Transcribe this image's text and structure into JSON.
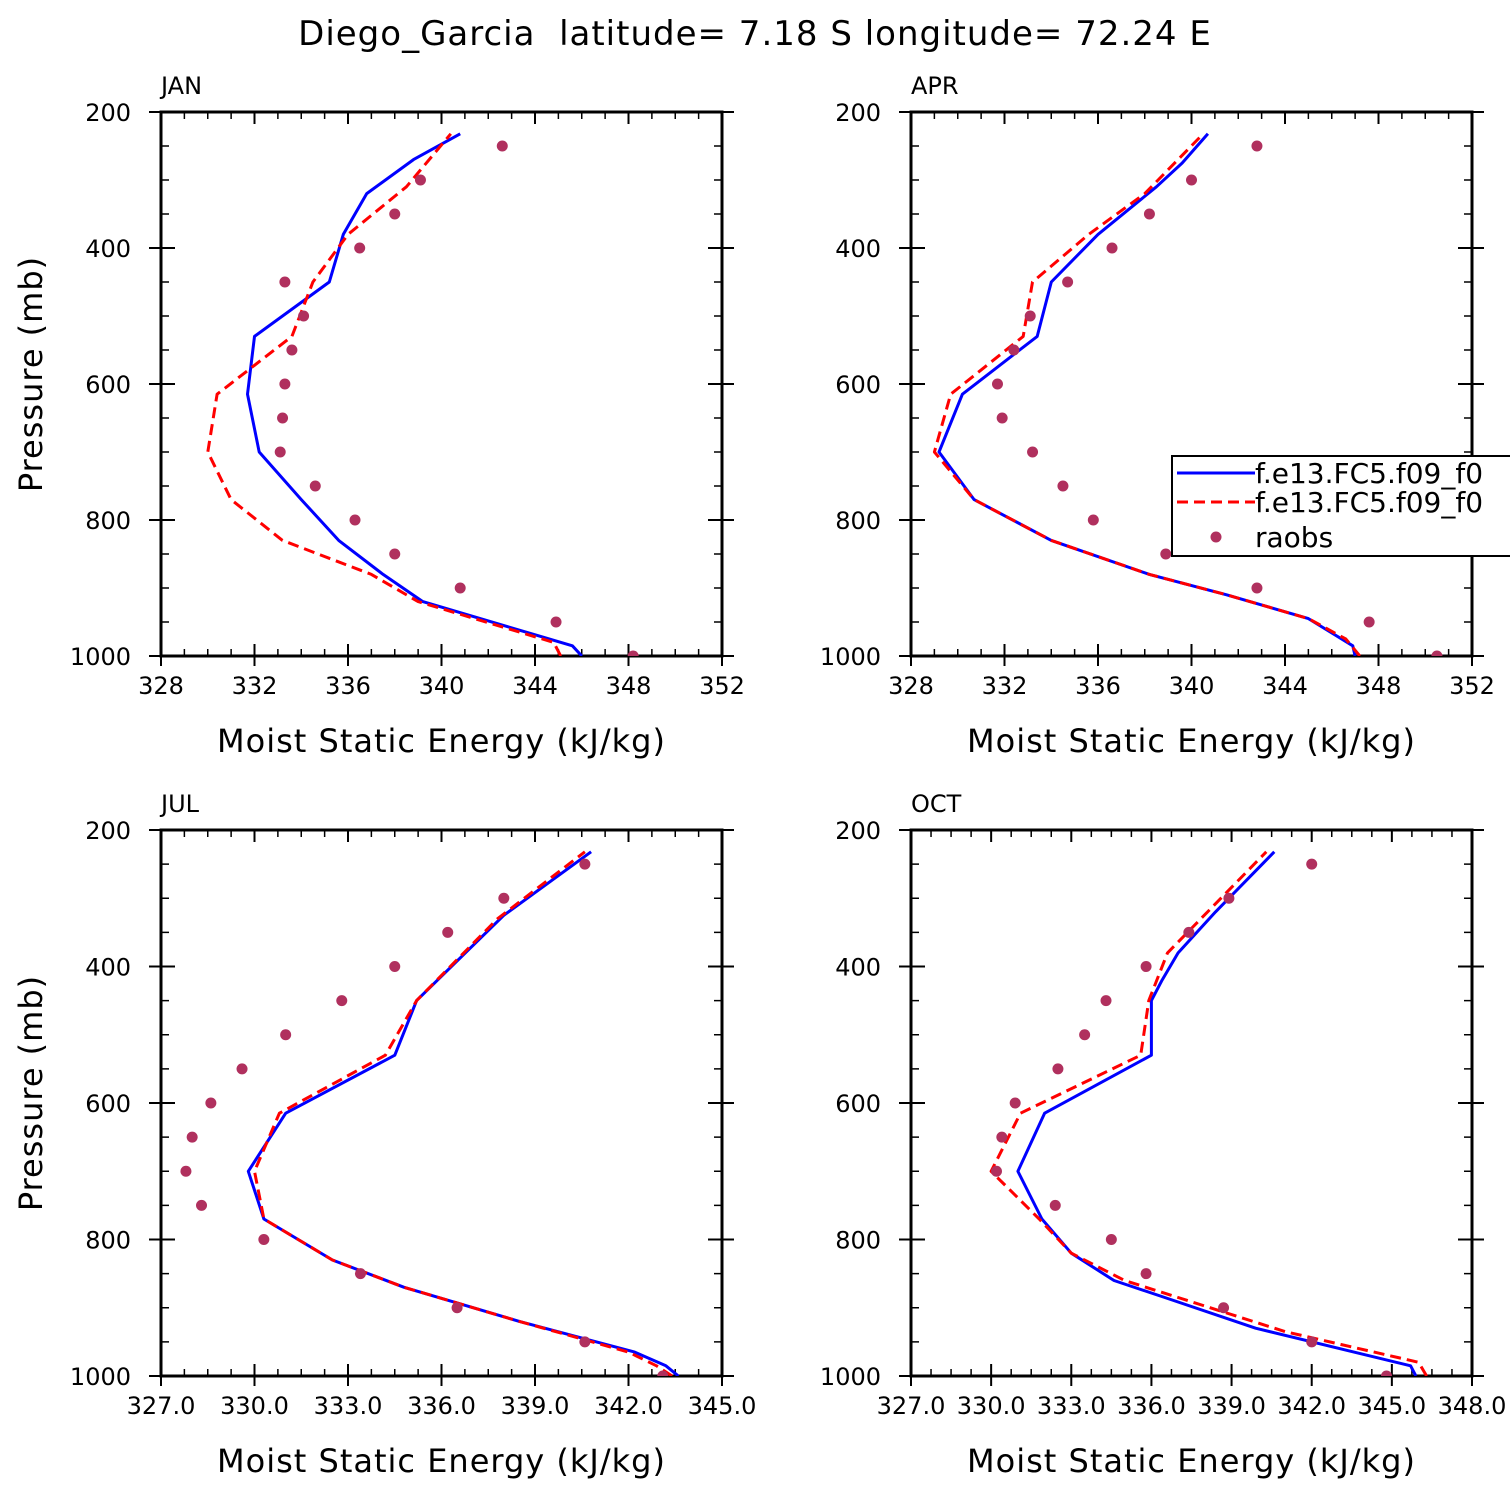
{
  "figure": {
    "title": "Diego_Garcia  latitude= 7.18 S longitude= 72.24 E"
  },
  "colors": {
    "model1": "#0000ff",
    "model2": "#ff0000",
    "raobs": "#b0305e",
    "axis": "#000000"
  },
  "chart_data": [
    {
      "type": "line",
      "panel": "JAN",
      "title": "JAN",
      "xlabel": "Moist Static Energy (kJ/kg)",
      "ylabel": "Pressure (mb)",
      "xlim": [
        328,
        352
      ],
      "ylim": [
        200,
        1000
      ],
      "xticks": [
        328,
        332,
        336,
        340,
        344,
        348,
        352
      ],
      "xtick_labels": [
        "328",
        "332",
        "336",
        "340",
        "344",
        "348",
        "352"
      ],
      "yticks": [
        200,
        400,
        600,
        800,
        1000
      ],
      "ytick_labels": [
        "200",
        "400",
        "600",
        "800",
        "1000"
      ],
      "y_inverted": true,
      "series": [
        {
          "name": "f.e13.FC5.f09_f0",
          "style": "solid",
          "color": "#0000ff",
          "x": [
            346.0,
            345.6,
            339.2,
            337.5,
            335.6,
            334.0,
            332.2,
            331.7,
            332.0,
            335.2,
            335.8,
            336.8,
            338.8,
            340.8
          ],
          "y": [
            1000,
            985,
            920,
            880,
            830,
            770,
            700,
            615,
            530,
            450,
            380,
            320,
            270,
            232
          ]
        },
        {
          "name": "f.e13.FC5.f09_f0",
          "style": "dashed",
          "color": "#ff0000",
          "x": [
            345.1,
            344.8,
            339.0,
            337.0,
            333.2,
            331.0,
            330.0,
            330.4,
            333.6,
            334.5,
            336.0,
            338.5,
            340.4
          ],
          "y": [
            1000,
            980,
            920,
            880,
            830,
            770,
            700,
            615,
            530,
            450,
            380,
            310,
            232
          ]
        },
        {
          "name": "raobs",
          "style": "markers",
          "color": "#b0305e",
          "x": [
            348.2,
            344.9,
            340.8,
            338.0,
            336.3,
            334.6,
            333.1,
            333.2,
            333.3,
            333.6,
            334.1,
            333.3,
            336.5,
            338.0,
            339.1,
            342.6
          ],
          "y": [
            1000,
            950,
            900,
            850,
            800,
            750,
            700,
            650,
            600,
            550,
            500,
            450,
            400,
            350,
            300,
            250
          ]
        }
      ]
    },
    {
      "type": "line",
      "panel": "APR",
      "title": "APR",
      "xlabel": "Moist Static Energy (kJ/kg)",
      "ylabel": "",
      "xlim": [
        328,
        352
      ],
      "ylim": [
        200,
        1000
      ],
      "xticks": [
        328,
        332,
        336,
        340,
        344,
        348,
        352
      ],
      "xtick_labels": [
        "328",
        "332",
        "336",
        "340",
        "344",
        "348",
        "352"
      ],
      "yticks": [
        200,
        400,
        600,
        800,
        1000
      ],
      "ytick_labels": [
        "200",
        "400",
        "600",
        "800",
        "1000"
      ],
      "y_inverted": true,
      "series": [
        {
          "name": "f.e13.FC5.f09_f0",
          "style": "solid",
          "color": "#0000ff",
          "x": [
            347.0,
            346.9,
            345.0,
            341.5,
            338.2,
            334.0,
            330.7,
            329.2,
            330.2,
            333.4,
            334.0,
            336.0,
            338.5,
            339.6,
            340.7
          ],
          "y": [
            1000,
            985,
            945,
            910,
            880,
            830,
            770,
            700,
            615,
            530,
            450,
            380,
            310,
            275,
            232
          ]
        },
        {
          "name": "f.e13.FC5.f09_f0",
          "style": "dashed",
          "color": "#ff0000",
          "x": [
            347.2,
            346.6,
            345.0,
            341.5,
            338.2,
            334.0,
            330.7,
            329.0,
            329.7,
            332.8,
            333.2,
            335.6,
            338.0,
            340.5
          ],
          "y": [
            1000,
            975,
            945,
            910,
            880,
            830,
            770,
            700,
            615,
            530,
            450,
            380,
            320,
            232
          ]
        },
        {
          "name": "raobs",
          "style": "markers",
          "color": "#b0305e",
          "x": [
            350.5,
            347.6,
            342.8,
            338.9,
            335.8,
            334.5,
            333.2,
            331.9,
            331.7,
            332.4,
            333.1,
            334.7,
            336.6,
            338.2,
            340.0,
            342.8
          ],
          "y": [
            1000,
            950,
            900,
            850,
            800,
            750,
            700,
            650,
            600,
            550,
            500,
            450,
            400,
            350,
            300,
            250
          ]
        }
      ]
    },
    {
      "type": "line",
      "panel": "JUL",
      "title": "JUL",
      "xlabel": "Moist Static Energy (kJ/kg)",
      "ylabel": "Pressure (mb)",
      "xlim": [
        327.0,
        345.0
      ],
      "ylim": [
        200,
        1000
      ],
      "xticks": [
        327.0,
        330.0,
        333.0,
        336.0,
        339.0,
        342.0,
        345.0
      ],
      "xtick_labels": [
        "327.0",
        "330.0",
        "333.0",
        "336.0",
        "339.0",
        "342.0",
        "345.0"
      ],
      "yticks": [
        200,
        400,
        600,
        800,
        1000
      ],
      "ytick_labels": [
        "200",
        "400",
        "600",
        "800",
        "1000"
      ],
      "y_inverted": true,
      "series": [
        {
          "name": "f.e13.FC5.f09_f0",
          "style": "solid",
          "color": "#0000ff",
          "x": [
            343.6,
            343.2,
            342.2,
            338.5,
            334.8,
            332.5,
            330.3,
            329.8,
            331.0,
            334.5,
            335.2,
            338.0,
            340.8
          ],
          "y": [
            1000,
            985,
            965,
            920,
            870,
            830,
            770,
            700,
            615,
            530,
            450,
            325,
            232
          ]
        },
        {
          "name": "f.e13.FC5.f09_f0",
          "style": "dashed",
          "color": "#ff0000",
          "x": [
            343.4,
            342.9,
            342.0,
            338.5,
            334.8,
            332.5,
            330.3,
            330.0,
            330.8,
            334.2,
            335.2,
            337.8,
            340.6
          ],
          "y": [
            1000,
            985,
            965,
            920,
            870,
            830,
            770,
            700,
            615,
            530,
            450,
            330,
            232
          ]
        },
        {
          "name": "raobs",
          "style": "markers",
          "color": "#b0305e",
          "x": [
            343.1,
            340.6,
            336.5,
            333.4,
            330.3,
            328.3,
            327.8,
            328.0,
            328.6,
            329.6,
            331.0,
            332.8,
            334.5,
            336.2,
            338.0,
            340.6
          ],
          "y": [
            1000,
            950,
            900,
            850,
            800,
            750,
            700,
            650,
            600,
            550,
            500,
            450,
            400,
            350,
            300,
            250
          ]
        }
      ]
    },
    {
      "type": "line",
      "panel": "OCT",
      "title": "OCT",
      "xlabel": "Moist Static Energy (kJ/kg)",
      "ylabel": "",
      "xlim": [
        327.0,
        348.0
      ],
      "ylim": [
        200,
        1000
      ],
      "xticks": [
        327.0,
        330.0,
        333.0,
        336.0,
        339.0,
        342.0,
        345.0,
        348.0
      ],
      "xtick_labels": [
        "327.0",
        "330.0",
        "333.0",
        "336.0",
        "339.0",
        "342.0",
        "345.0",
        "348.0"
      ],
      "yticks": [
        200,
        400,
        600,
        800,
        1000
      ],
      "ytick_labels": [
        "200",
        "400",
        "600",
        "800",
        "1000"
      ],
      "y_inverted": true,
      "series": [
        {
          "name": "f.e13.FC5.f09_f0",
          "style": "solid",
          "color": "#0000ff",
          "x": [
            345.9,
            345.7,
            339.9,
            336.5,
            334.6,
            333.0,
            331.9,
            331.0,
            332.0,
            336.0,
            336.0,
            336.4,
            337.0,
            338.4,
            340.6
          ],
          "y": [
            1000,
            985,
            930,
            885,
            860,
            820,
            770,
            700,
            615,
            530,
            450,
            420,
            380,
            320,
            232
          ]
        },
        {
          "name": "f.e13.FC5.f09_f0",
          "style": "dashed",
          "color": "#ff0000",
          "x": [
            346.3,
            346.0,
            341.0,
            337.0,
            335.0,
            333.0,
            331.8,
            330.0,
            331.1,
            335.6,
            335.9,
            336.6,
            340.3
          ],
          "y": [
            1000,
            980,
            935,
            885,
            860,
            820,
            770,
            700,
            615,
            530,
            450,
            380,
            232
          ]
        },
        {
          "name": "raobs",
          "style": "markers",
          "color": "#b0305e",
          "x": [
            344.8,
            342.0,
            338.7,
            335.8,
            334.5,
            332.4,
            330.2,
            330.4,
            330.9,
            332.5,
            333.5,
            334.3,
            335.8,
            337.4,
            338.9,
            342.0
          ],
          "y": [
            1000,
            950,
            900,
            850,
            800,
            750,
            700,
            650,
            600,
            550,
            500,
            450,
            400,
            350,
            300,
            250
          ]
        }
      ]
    }
  ],
  "legend": {
    "placement": "right-middle of APR panel",
    "entries": [
      {
        "label": "f.e13.FC5.f09_f0",
        "style": "solid",
        "color": "#0000ff"
      },
      {
        "label": "f.e13.FC5.f09_f0",
        "style": "dashed",
        "color": "#ff0000"
      },
      {
        "label": "raobs",
        "style": "markers",
        "color": "#b0305e"
      }
    ]
  }
}
